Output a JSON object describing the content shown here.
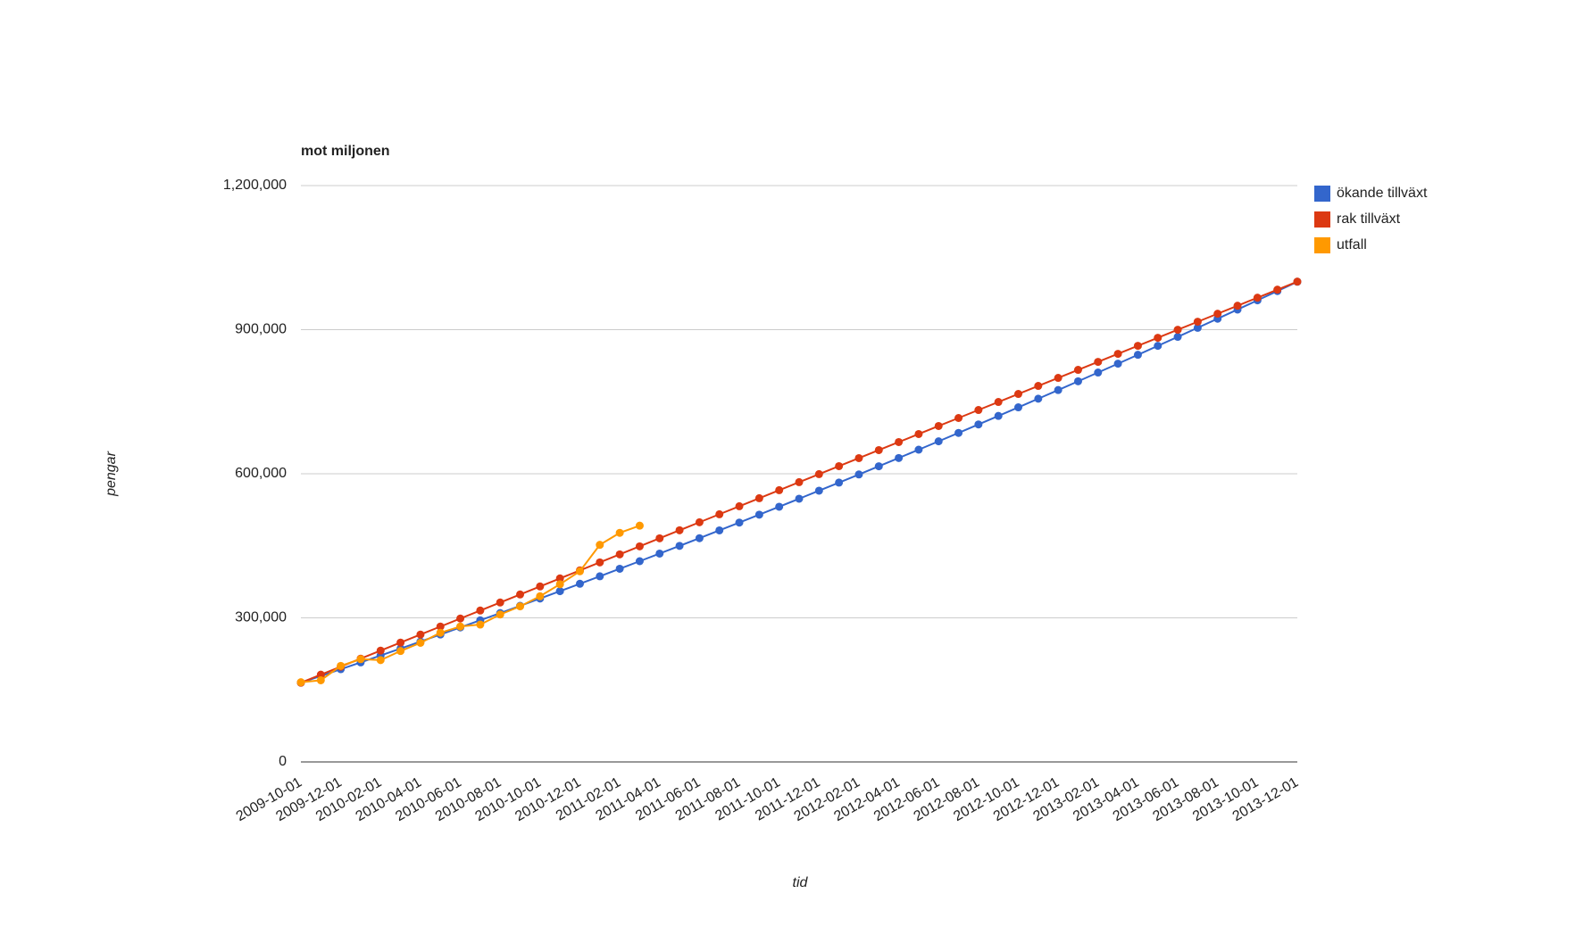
{
  "chart_data": {
    "type": "line",
    "title": "mot miljonen",
    "x_label": "tid",
    "y_label": "pengar",
    "categories": [
      "2009-10-01",
      null,
      "2009-12-01",
      null,
      "2010-02-01",
      null,
      "2010-04-01",
      null,
      "2010-06-01",
      null,
      "2010-08-01",
      null,
      "2010-10-01",
      null,
      "2010-12-01",
      null,
      "2011-02-01",
      null,
      "2011-04-01",
      null,
      "2011-06-01",
      null,
      "2011-08-01",
      null,
      "2011-10-01",
      null,
      "2011-12-01",
      null,
      "2012-02-01",
      null,
      "2012-04-01",
      null,
      "2012-06-01",
      null,
      "2012-08-01",
      null,
      "2012-10-01",
      null,
      "2012-12-01",
      null,
      "2013-02-01",
      null,
      "2013-04-01",
      null,
      "2013-06-01",
      null,
      "2013-08-01",
      null,
      "2013-10-01",
      null,
      "2013-12-01"
    ],
    "series": [
      {
        "name": "ökande tillväxt",
        "color": "#3366cc",
        "values": [
          165000,
          179000,
          193110,
          207330,
          221660,
          236100,
          250650,
          265310,
          280080,
          294960,
          309950,
          325050,
          340260,
          355580,
          371010,
          386550,
          402200,
          417960,
          433830,
          449810,
          465900,
          482100,
          498410,
          514830,
          531360,
          548000,
          564750,
          581610,
          598580,
          615660,
          632850,
          650150,
          667560,
          685080,
          702710,
          720450,
          738300,
          756260,
          774330,
          792510,
          810800,
          829200,
          847710,
          866330,
          885060,
          903900,
          922850,
          941910,
          961080,
          980360,
          999750
        ]
      },
      {
        "name": "rak tillväxt",
        "color": "#dc3912",
        "values": [
          165000,
          181700,
          198400,
          215100,
          231800,
          248500,
          265200,
          281900,
          298600,
          315300,
          332000,
          348700,
          365400,
          382100,
          398800,
          415500,
          432200,
          448900,
          465600,
          482300,
          499000,
          515700,
          532400,
          549100,
          565800,
          582500,
          599200,
          615900,
          632600,
          649300,
          666000,
          682700,
          699400,
          716100,
          732800,
          749500,
          766200,
          782900,
          799600,
          816300,
          833000,
          849700,
          866400,
          883100,
          899800,
          916500,
          933200,
          949900,
          966600,
          983300,
          1000000
        ]
      },
      {
        "name": "utfall",
        "color": "#ff9900",
        "values": [
          166000,
          170000,
          200000,
          214000,
          212000,
          231000,
          248000,
          269000,
          282000,
          286000,
          307000,
          324000,
          345000,
          370000,
          397000,
          452000,
          477000,
          492000,
          null,
          null,
          null,
          null,
          null,
          null,
          null,
          null,
          null,
          null,
          null,
          null,
          null,
          null,
          null,
          null,
          null,
          null,
          null,
          null,
          null,
          null,
          null,
          null,
          null,
          null,
          null,
          null,
          null,
          null,
          null,
          null,
          null
        ]
      }
    ],
    "ylim": [
      0,
      1200000
    ],
    "yticks": [
      0,
      {
        "value": 300000,
        "label": "300,000"
      },
      {
        "value": 600000,
        "label": "600,000"
      },
      {
        "value": 900000,
        "label": "900,000"
      },
      {
        "value": 1200000,
        "label": "1,200,000"
      }
    ],
    "grid": true,
    "legend": "right"
  }
}
